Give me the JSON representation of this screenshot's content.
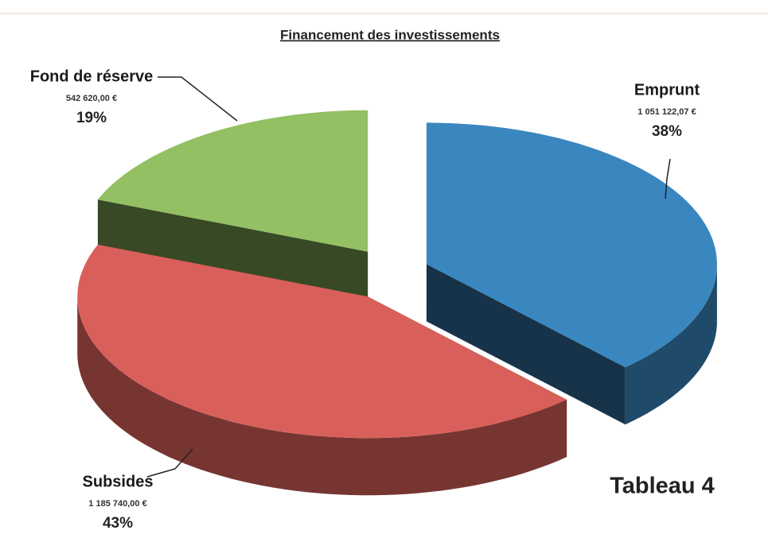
{
  "chart_data": {
    "type": "pie",
    "title": "Financement des investissements",
    "categories": [
      "Emprunt",
      "Subsides",
      "Fond de réserve"
    ],
    "values": [
      38,
      43,
      19
    ],
    "value_labels": [
      "38%",
      "43%",
      "19%"
    ],
    "amount_labels": [
      "1 051 122,07 €",
      "1 185 740,00 €",
      "542 620,00 €"
    ],
    "colors": [
      "#3a87c0",
      "#d9605a",
      "#93c062"
    ],
    "caption": "Tableau 4"
  }
}
